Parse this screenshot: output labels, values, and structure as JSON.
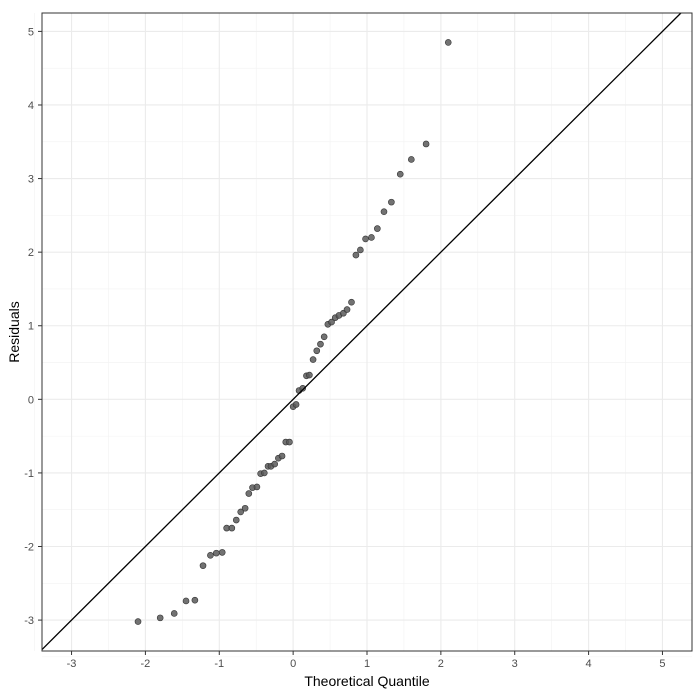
{
  "chart_data": {
    "type": "scatter",
    "xlabel": "Theoretical Quantile",
    "ylabel": "Residuals",
    "xlim": [
      -3.4,
      5.4
    ],
    "ylim": [
      -3.42,
      5.25
    ],
    "x_ticks": [
      -3,
      -2,
      -1,
      0,
      1,
      2,
      3,
      4,
      5
    ],
    "y_ticks": [
      -3,
      -2,
      -1,
      0,
      1,
      2,
      3,
      4,
      5
    ],
    "x_tick_labels": [
      "-3",
      "-2",
      "-1",
      "0",
      "1",
      "2",
      "3",
      "4",
      "5"
    ],
    "y_tick_labels": [
      "-3",
      "-2",
      "-1",
      "0",
      "1",
      "2",
      "3",
      "4",
      "5"
    ],
    "grid": true,
    "reference_line": {
      "slope": 1,
      "intercept": 0
    },
    "point_color": "#595959",
    "points": [
      {
        "x": -2.1,
        "y": -3.02
      },
      {
        "x": -1.8,
        "y": -2.97
      },
      {
        "x": -1.61,
        "y": -2.91
      },
      {
        "x": -1.45,
        "y": -2.74
      },
      {
        "x": -1.33,
        "y": -2.73
      },
      {
        "x": -1.22,
        "y": -2.26
      },
      {
        "x": -1.12,
        "y": -2.12
      },
      {
        "x": -1.04,
        "y": -2.09
      },
      {
        "x": -0.96,
        "y": -2.08
      },
      {
        "x": -0.9,
        "y": -1.75
      },
      {
        "x": -0.83,
        "y": -1.75
      },
      {
        "x": -0.77,
        "y": -1.64
      },
      {
        "x": -0.71,
        "y": -1.53
      },
      {
        "x": -0.65,
        "y": -1.48
      },
      {
        "x": -0.6,
        "y": -1.28
      },
      {
        "x": -0.55,
        "y": -1.2
      },
      {
        "x": -0.49,
        "y": -1.19
      },
      {
        "x": -0.44,
        "y": -1.01
      },
      {
        "x": -0.39,
        "y": -1.0
      },
      {
        "x": -0.34,
        "y": -0.91
      },
      {
        "x": -0.3,
        "y": -0.91
      },
      {
        "x": -0.25,
        "y": -0.88
      },
      {
        "x": -0.2,
        "y": -0.8
      },
      {
        "x": -0.15,
        "y": -0.77
      },
      {
        "x": -0.1,
        "y": -0.58
      },
      {
        "x": -0.05,
        "y": -0.58
      },
      {
        "x": 0.0,
        "y": -0.1
      },
      {
        "x": 0.04,
        "y": -0.07
      },
      {
        "x": 0.08,
        "y": 0.12
      },
      {
        "x": 0.13,
        "y": 0.15
      },
      {
        "x": 0.18,
        "y": 0.32
      },
      {
        "x": 0.22,
        "y": 0.33
      },
      {
        "x": 0.27,
        "y": 0.54
      },
      {
        "x": 0.32,
        "y": 0.66
      },
      {
        "x": 0.37,
        "y": 0.75
      },
      {
        "x": 0.42,
        "y": 0.85
      },
      {
        "x": 0.47,
        "y": 1.02
      },
      {
        "x": 0.52,
        "y": 1.05
      },
      {
        "x": 0.57,
        "y": 1.11
      },
      {
        "x": 0.62,
        "y": 1.14
      },
      {
        "x": 0.68,
        "y": 1.17
      },
      {
        "x": 0.73,
        "y": 1.22
      },
      {
        "x": 0.79,
        "y": 1.32
      },
      {
        "x": 0.85,
        "y": 1.96
      },
      {
        "x": 0.91,
        "y": 2.03
      },
      {
        "x": 0.98,
        "y": 2.18
      },
      {
        "x": 1.06,
        "y": 2.2
      },
      {
        "x": 1.14,
        "y": 2.32
      },
      {
        "x": 1.23,
        "y": 2.55
      },
      {
        "x": 1.33,
        "y": 2.68
      },
      {
        "x": 1.45,
        "y": 3.06
      },
      {
        "x": 1.6,
        "y": 3.26
      },
      {
        "x": 1.8,
        "y": 3.47
      },
      {
        "x": 2.1,
        "y": 4.85
      }
    ]
  }
}
